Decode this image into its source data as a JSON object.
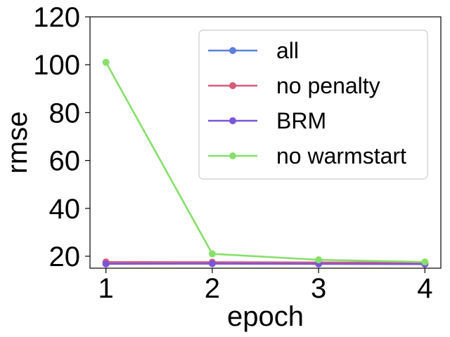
{
  "chart_data": {
    "type": "line",
    "title": "",
    "xlabel": "epoch",
    "ylabel": "rmse",
    "x": [
      1,
      2,
      3,
      4
    ],
    "xticks": [
      "1",
      "2",
      "3",
      "4"
    ],
    "yticks": [
      "20",
      "40",
      "60",
      "80",
      "100",
      "120"
    ],
    "xlim": [
      0.85,
      4.15
    ],
    "ylim": [
      15,
      120
    ],
    "grid": false,
    "legend": "top-right",
    "series": [
      {
        "name": "all",
        "color": "#5b7fdb",
        "values": [
          17.2,
          17.2,
          17.1,
          17.0
        ]
      },
      {
        "name": "no penalty",
        "color": "#d65c7a",
        "values": [
          17.6,
          17.5,
          17.4,
          17.3
        ]
      },
      {
        "name": "BRM",
        "color": "#7b55d9",
        "values": [
          16.8,
          16.9,
          16.8,
          16.7
        ]
      },
      {
        "name": "no warmstart",
        "color": "#86e06a",
        "values": [
          101.0,
          21.0,
          18.5,
          17.6
        ]
      }
    ]
  }
}
